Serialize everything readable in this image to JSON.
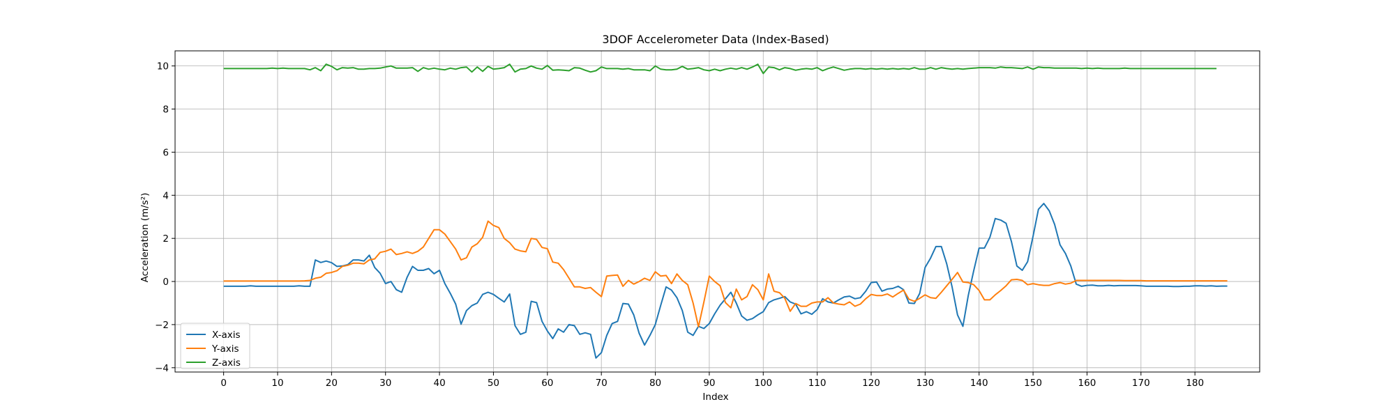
{
  "chart_data": {
    "type": "line",
    "title": "3DOF Accelerometer Data (Index-Based)",
    "xlabel": "Index",
    "ylabel": "Acceleration (m/s²)",
    "xlim": [
      -9,
      192
    ],
    "ylim": [
      -4.2,
      10.7
    ],
    "xticks": [
      0,
      10,
      20,
      30,
      40,
      50,
      60,
      70,
      80,
      90,
      100,
      110,
      120,
      130,
      140,
      150,
      160,
      170,
      180
    ],
    "yticks": [
      -4,
      -2,
      0,
      2,
      4,
      6,
      8,
      10
    ],
    "grid": true,
    "legend_position": "lower-left",
    "series": [
      {
        "name": "X-axis",
        "color": "#1f77b4",
        "values": [
          -0.22,
          -0.22,
          -0.22,
          -0.22,
          -0.22,
          -0.2,
          -0.22,
          -0.22,
          -0.22,
          -0.22,
          -0.22,
          -0.22,
          -0.22,
          -0.22,
          -0.2,
          -0.22,
          -0.22,
          1.0,
          0.88,
          0.95,
          0.87,
          0.7,
          0.72,
          0.78,
          1.0,
          1.0,
          0.95,
          1.22,
          0.65,
          0.38,
          -0.1,
          0.0,
          -0.38,
          -0.5,
          0.2,
          0.7,
          0.52,
          0.52,
          0.6,
          0.36,
          0.52,
          -0.1,
          -0.55,
          -1.05,
          -1.98,
          -1.35,
          -1.12,
          -1.0,
          -0.6,
          -0.5,
          -0.6,
          -0.78,
          -0.95,
          -0.58,
          -2.05,
          -2.45,
          -2.35,
          -0.92,
          -0.98,
          -1.85,
          -2.3,
          -2.65,
          -2.2,
          -2.35,
          -2.0,
          -2.05,
          -2.45,
          -2.38,
          -2.45,
          -3.55,
          -3.3,
          -2.5,
          -1.95,
          -1.85,
          -1.02,
          -1.05,
          -1.55,
          -2.4,
          -2.95,
          -2.5,
          -2.0,
          -1.1,
          -0.25,
          -0.4,
          -0.75,
          -1.35,
          -2.35,
          -2.5,
          -2.08,
          -2.18,
          -1.95,
          -1.5,
          -1.1,
          -0.8,
          -0.5,
          -1.0,
          -1.6,
          -1.8,
          -1.72,
          -1.55,
          -1.4,
          -0.98,
          -0.85,
          -0.78,
          -0.7,
          -0.95,
          -1.05,
          -1.5,
          -1.4,
          -1.52,
          -1.3,
          -0.8,
          -0.95,
          -1.0,
          -0.85,
          -0.72,
          -0.68,
          -0.8,
          -0.75,
          -0.45,
          -0.05,
          -0.02,
          -0.45,
          -0.35,
          -0.32,
          -0.22,
          -0.38,
          -1.0,
          -1.02,
          -0.55,
          0.65,
          1.08,
          1.62,
          1.62,
          0.82,
          -0.25,
          -1.55,
          -2.08,
          -0.65,
          0.5,
          1.55,
          1.55,
          2.05,
          2.92,
          2.85,
          2.7,
          1.85,
          0.72,
          0.52,
          0.92,
          2.1,
          3.35,
          3.62,
          3.28,
          2.65,
          1.7,
          1.3,
          0.72,
          -0.12,
          -0.22,
          -0.18,
          -0.17,
          -0.2,
          -0.2,
          -0.18,
          -0.2,
          -0.19,
          -0.19,
          -0.19,
          -0.19,
          -0.2,
          -0.22,
          -0.22,
          -0.22,
          -0.22,
          -0.22,
          -0.23,
          -0.23,
          -0.22,
          -0.22,
          -0.2,
          -0.2,
          -0.21,
          -0.2,
          -0.22,
          -0.21,
          -0.21
        ]
      },
      {
        "name": "Y-axis",
        "color": "#ff7f0e",
        "values": [
          0.02,
          0.02,
          0.02,
          0.02,
          0.02,
          0.02,
          0.02,
          0.02,
          0.02,
          0.02,
          0.02,
          0.02,
          0.02,
          0.02,
          0.02,
          0.03,
          0.05,
          0.15,
          0.2,
          0.38,
          0.42,
          0.5,
          0.7,
          0.75,
          0.85,
          0.85,
          0.82,
          1.0,
          1.05,
          1.35,
          1.4,
          1.5,
          1.25,
          1.3,
          1.38,
          1.3,
          1.4,
          1.6,
          2.0,
          2.4,
          2.4,
          2.2,
          1.85,
          1.5,
          1.0,
          1.1,
          1.6,
          1.75,
          2.05,
          2.8,
          2.6,
          2.5,
          2.0,
          1.8,
          1.5,
          1.42,
          1.38,
          2.0,
          1.95,
          1.58,
          1.52,
          0.9,
          0.85,
          0.55,
          0.15,
          -0.25,
          -0.25,
          -0.32,
          -0.28,
          -0.5,
          -0.7,
          0.25,
          0.28,
          0.3,
          -0.22,
          0.05,
          -0.12,
          0.0,
          0.15,
          0.05,
          0.45,
          0.25,
          0.28,
          -0.1,
          0.35,
          0.05,
          -0.15,
          -1.0,
          -2.1,
          -0.95,
          0.25,
          0.0,
          -0.2,
          -0.98,
          -1.22,
          -0.35,
          -0.85,
          -0.7,
          -0.15,
          -0.38,
          -0.85,
          0.35,
          -0.45,
          -0.52,
          -0.78,
          -1.38,
          -1.02,
          -1.15,
          -1.15,
          -1.0,
          -0.95,
          -0.95,
          -0.75,
          -1.0,
          -1.05,
          -1.08,
          -0.95,
          -1.15,
          -1.05,
          -0.8,
          -0.6,
          -0.65,
          -0.65,
          -0.58,
          -0.72,
          -0.55,
          -0.4,
          -0.82,
          -0.92,
          -0.78,
          -0.62,
          -0.75,
          -0.78,
          -0.5,
          -0.2,
          0.1,
          0.42,
          -0.02,
          -0.05,
          -0.15,
          -0.42,
          -0.85,
          -0.85,
          -0.62,
          -0.42,
          -0.2,
          0.08,
          0.1,
          0.05,
          -0.15,
          -0.1,
          -0.15,
          -0.18,
          -0.18,
          -0.1,
          -0.05,
          -0.12,
          -0.08,
          0.05,
          0.05,
          0.05,
          0.05,
          0.05,
          0.05,
          0.05,
          0.05,
          0.05,
          0.04,
          0.04,
          0.04,
          0.04,
          0.03,
          0.03,
          0.03,
          0.03,
          0.03,
          0.03,
          0.03,
          0.03,
          0.03,
          0.03,
          0.03,
          0.03,
          0.03,
          0.03,
          0.03,
          0.03
        ]
      },
      {
        "name": "Z-axis",
        "color": "#2ca02c",
        "values": [
          9.88,
          9.88,
          9.88,
          9.88,
          9.88,
          9.88,
          9.88,
          9.88,
          9.88,
          9.9,
          9.88,
          9.9,
          9.88,
          9.88,
          9.88,
          9.88,
          9.82,
          9.92,
          9.78,
          10.08,
          9.98,
          9.82,
          9.92,
          9.9,
          9.92,
          9.85,
          9.85,
          9.88,
          9.88,
          9.9,
          9.95,
          10.0,
          9.9,
          9.9,
          9.9,
          9.92,
          9.75,
          9.92,
          9.85,
          9.9,
          9.85,
          9.82,
          9.9,
          9.85,
          9.92,
          9.95,
          9.72,
          9.95,
          9.75,
          9.98,
          9.85,
          9.88,
          9.92,
          10.08,
          9.72,
          9.85,
          9.88,
          10.0,
          9.9,
          9.85,
          10.02,
          9.8,
          9.82,
          9.8,
          9.78,
          9.92,
          9.9,
          9.8,
          9.72,
          9.78,
          9.95,
          9.88,
          9.88,
          9.88,
          9.85,
          9.88,
          9.82,
          9.82,
          9.82,
          9.78,
          10.0,
          9.85,
          9.82,
          9.82,
          9.85,
          9.98,
          9.85,
          9.88,
          9.92,
          9.82,
          9.78,
          9.85,
          9.78,
          9.85,
          9.9,
          9.85,
          9.92,
          9.85,
          9.95,
          10.08,
          9.65,
          9.95,
          9.92,
          9.82,
          9.92,
          9.88,
          9.8,
          9.85,
          9.88,
          9.85,
          9.92,
          9.78,
          9.88,
          9.95,
          9.88,
          9.8,
          9.85,
          9.88,
          9.88,
          9.85,
          9.88,
          9.85,
          9.88,
          9.85,
          9.88,
          9.85,
          9.88,
          9.85,
          9.92,
          9.85,
          9.85,
          9.92,
          9.85,
          9.92,
          9.88,
          9.85,
          9.88,
          9.85,
          9.88,
          9.9,
          9.92,
          9.92,
          9.92,
          9.9,
          9.95,
          9.92,
          9.92,
          9.9,
          9.88,
          9.95,
          9.85,
          9.95,
          9.92,
          9.92,
          9.9,
          9.9,
          9.9,
          9.9,
          9.9,
          9.88,
          9.9,
          9.88,
          9.9,
          9.88,
          9.88,
          9.88,
          9.88,
          9.9,
          9.88,
          9.88,
          9.88,
          9.88,
          9.88,
          9.88,
          9.88,
          9.88,
          9.88,
          9.88,
          9.88,
          9.88,
          9.88,
          9.88,
          9.88,
          9.88,
          9.88
        ]
      }
    ]
  }
}
